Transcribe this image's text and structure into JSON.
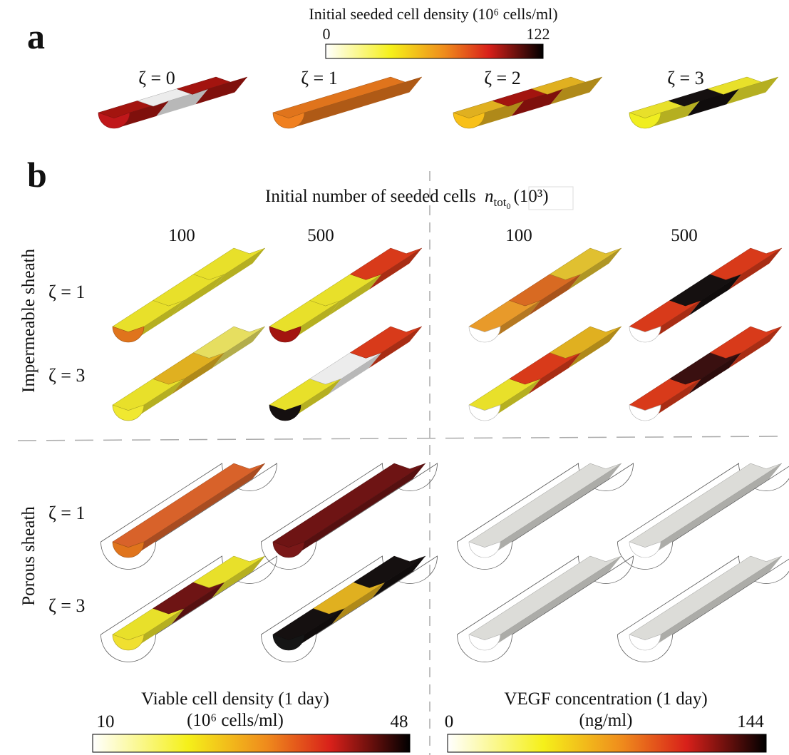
{
  "panel_a": {
    "label": "a",
    "colorbar": {
      "title": "Initial seeded cell density (10⁶ cells/ml)",
      "min": "0",
      "max": "122"
    },
    "conditions": [
      "ζ = 0",
      "ζ = 1",
      "ζ = 2",
      "ζ = 3"
    ]
  },
  "panel_b": {
    "label": "b",
    "header": {
      "text": "Initial number of seeded cells",
      "symbol": "n",
      "subscript": "tot",
      "subsubscript": "0",
      "unit": "(10³)"
    },
    "column_labels": [
      "100",
      "500",
      "100",
      "500"
    ],
    "row_groups": [
      "Impermeable sheath",
      "Porous sheath"
    ],
    "row_labels": [
      "ζ = 1",
      "ζ = 3",
      "ζ = 1",
      "ζ = 3"
    ],
    "colorbars": [
      {
        "title": "Viable cell density (1 day)",
        "unit": "(10⁶ cells/ml)",
        "min": "10",
        "max": "48"
      },
      {
        "title": "VEGF concentration (1 day)",
        "unit": "(ng/ml)",
        "min": "0",
        "max": "144"
      }
    ]
  }
}
